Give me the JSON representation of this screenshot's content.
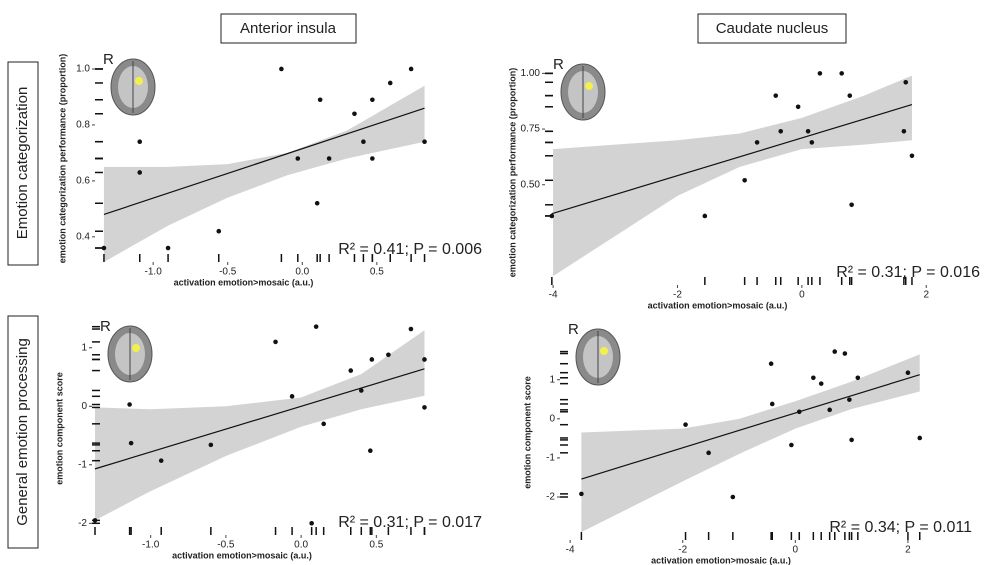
{
  "column_labels": [
    "Anterior insula",
    "Caudate nucleus"
  ],
  "row_labels": [
    "Emotion categorization",
    "General emotion processing"
  ],
  "chart_data": [
    {
      "type": "scatter",
      "brain_label": "R",
      "annotation": "R² = 0.41; P = 0.006",
      "x_label": "activation emotion>mosaic (a.u.)",
      "y_label": "emotion categorization performance (proportion)",
      "xlim": [
        -1.39,
        0.87
      ],
      "ylim": [
        0.31,
        1.05
      ],
      "xticks": [
        {
          "value": -1,
          "label": "-1.0"
        },
        -0.5,
        {
          "value": 0,
          "label": "0.0"
        },
        0.5
      ],
      "yticks": [
        0.4,
        0.6,
        0.8,
        {
          "value": 1,
          "label": "1.0"
        }
      ],
      "x": [
        -1.33,
        -1.09,
        -1.09,
        -0.9,
        -0.56,
        -0.14,
        -0.03,
        0.1,
        0.12,
        0.18,
        0.35,
        0.41,
        0.47,
        0.47,
        0.59,
        0.73,
        0.82
      ],
      "y": [
        0.36,
        0.74,
        0.63,
        0.36,
        0.42,
        1.0,
        0.68,
        0.52,
        0.89,
        0.68,
        0.84,
        0.74,
        0.89,
        0.68,
        0.95,
        1.0,
        0.74
      ],
      "fit": {
        "x": [
          -1.33,
          0.82
        ],
        "y": [
          0.48,
          0.86
        ]
      },
      "band": {
        "x": [
          -1.33,
          -0.9,
          -0.5,
          -0.1,
          0.3,
          0.82
        ],
        "lower": [
          0.31,
          0.44,
          0.54,
          0.62,
          0.68,
          0.74
        ],
        "upper": [
          0.65,
          0.65,
          0.66,
          0.7,
          0.78,
          0.94
        ]
      }
    },
    {
      "type": "scatter",
      "brain_label": "R",
      "annotation": "R² = 0.31; P = 0.016",
      "x_label": "activation emotion>mosaic (a.u.)",
      "y_label": "emotion categorization performance (proportion)",
      "xlim": [
        -4.13,
        2.06
      ],
      "ylim": [
        0.05,
        1.06
      ],
      "xticks": [
        -4,
        -2,
        0,
        2
      ],
      "yticks": [
        {
          "value": 0.5,
          "label": "0.50"
        },
        0.75,
        {
          "value": 1,
          "label": "1.00"
        }
      ],
      "x": [
        -4.02,
        -1.56,
        -0.92,
        -0.72,
        -0.42,
        -0.34,
        -0.06,
        0.1,
        0.16,
        0.29,
        0.64,
        0.77,
        0.8,
        1.64,
        1.67,
        1.77
      ],
      "y": [
        0.36,
        0.36,
        0.52,
        0.69,
        0.9,
        0.74,
        0.85,
        0.74,
        0.69,
        1.0,
        1.0,
        0.9,
        0.41,
        0.74,
        0.96,
        0.63
      ],
      "fit": {
        "x": [
          -4.02,
          1.77
        ],
        "y": [
          0.37,
          0.86
        ]
      },
      "band": {
        "x": [
          -4.0,
          -3,
          -2,
          -1,
          0,
          1,
          1.77
        ],
        "lower": [
          0.09,
          0.27,
          0.45,
          0.58,
          0.66,
          0.68,
          0.7
        ],
        "upper": [
          0.66,
          0.68,
          0.7,
          0.73,
          0.8,
          0.9,
          0.99
        ]
      }
    },
    {
      "type": "scatter",
      "brain_label": "R",
      "annotation": "R² = 0.31; P = 0.017",
      "x_label": "activation emotion>mosaic (a.u.)",
      "y_label": "emotion component score",
      "xlim": [
        -1.39,
        0.87
      ],
      "ylim": [
        -2.2,
        1.44
      ],
      "xticks": [
        {
          "value": -1,
          "label": "-1.0"
        },
        -0.5,
        {
          "value": 0,
          "label": "0.0"
        },
        0.5
      ],
      "yticks": [
        -2,
        -1,
        0,
        1
      ],
      "x": [
        -1.37,
        -1.14,
        -1.13,
        -0.93,
        -0.6,
        -0.17,
        -0.06,
        0.07,
        0.1,
        0.15,
        0.33,
        0.4,
        0.46,
        0.47,
        0.58,
        0.73,
        0.82,
        0.82
      ],
      "y": [
        -1.95,
        0.03,
        -0.63,
        -0.93,
        -0.66,
        1.1,
        0.17,
        -2.0,
        1.36,
        -0.3,
        0.61,
        0.27,
        -0.76,
        0.8,
        0.88,
        1.32,
        0.8,
        -0.02
      ],
      "fit": {
        "x": [
          -1.37,
          0.82
        ],
        "y": [
          -1.07,
          0.64
        ]
      },
      "band": {
        "x": [
          -1.37,
          -1.0,
          -0.5,
          0,
          0.4,
          0.82
        ],
        "lower": [
          -1.95,
          -1.45,
          -0.85,
          -0.35,
          -0.05,
          0.18
        ],
        "upper": [
          -0.02,
          -0.05,
          0.0,
          0.15,
          0.55,
          1.3
        ]
      }
    },
    {
      "type": "scatter",
      "brain_label": "R",
      "annotation": "R² = 0.34; P = 0.011",
      "x_label": "activation emotion>mosaic (a.u.)",
      "y_label": "emotion component score",
      "xlim": [
        -4.18,
        2.25
      ],
      "ylim": [
        -3.1,
        2.4
      ],
      "xticks": [
        -4,
        -2,
        0,
        2
      ],
      "yticks": [
        -2,
        -1,
        0,
        1
      ],
      "x": [
        -3.8,
        -1.95,
        -1.54,
        -1.11,
        -0.43,
        -0.41,
        -0.07,
        0.07,
        0.32,
        0.46,
        0.61,
        0.7,
        0.88,
        0.96,
        1.0,
        1.11,
        2.0,
        2.21
      ],
      "y": [
        -1.92,
        -0.15,
        -0.87,
        -2.0,
        1.41,
        0.38,
        -0.67,
        0.18,
        1.05,
        0.9,
        0.23,
        1.72,
        1.67,
        0.49,
        -0.54,
        1.05,
        1.18,
        -0.49
      ],
      "fit": {
        "x": [
          -3.8,
          2.21
        ],
        "y": [
          -1.54,
          1.13
        ]
      },
      "band": {
        "x": [
          -3.8,
          -2,
          -1,
          0,
          1,
          2.21
        ],
        "lower": [
          -2.9,
          -1.6,
          -0.9,
          -0.25,
          0.25,
          0.7
        ],
        "upper": [
          -0.35,
          -0.25,
          0.0,
          0.45,
          0.95,
          1.65
        ]
      }
    }
  ]
}
